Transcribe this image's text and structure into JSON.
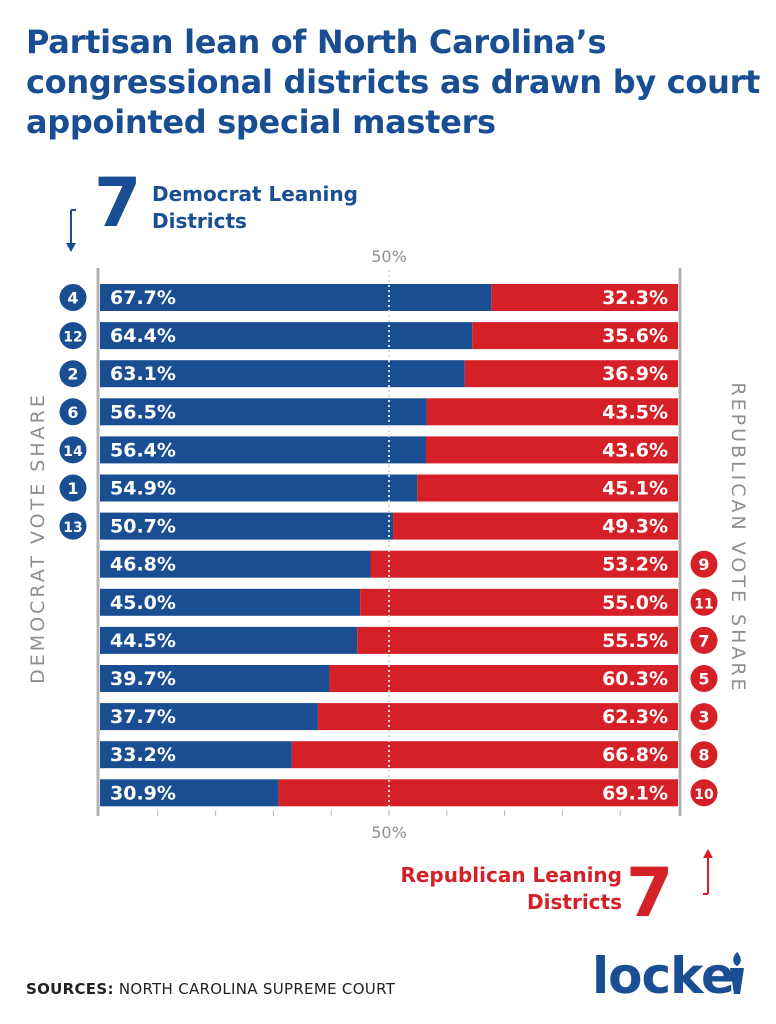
{
  "title": "Partisan lean of North Carolina’s congressional districts as drawn by court appointed special masters",
  "dem_summary": {
    "count": "7",
    "label": "Democrat Leaning Districts"
  },
  "rep_summary": {
    "count": "7",
    "label": "Republican Leaning Districts"
  },
  "left_axis_label": "DEMOCRAT VOTE SHARE",
  "right_axis_label": "REPUBLICAN VOTE SHARE",
  "sources": {
    "label": "SOURCES:",
    "text": "NORTH CAROLINA SUPREME COURT"
  },
  "logo_text": "locke",
  "colors": {
    "dem": "#1a4e92",
    "rep": "#d62027",
    "axis": "#b3b3b3"
  },
  "chart_data": {
    "type": "bar",
    "orientation": "horizontal-stacked-100",
    "midline_label": "50%",
    "categories": [
      "4",
      "12",
      "2",
      "6",
      "14",
      "1",
      "13",
      "9",
      "11",
      "7",
      "5",
      "3",
      "8",
      "10"
    ],
    "series": [
      {
        "name": "Democrat vote share",
        "values": [
          67.7,
          64.4,
          63.1,
          56.5,
          56.4,
          54.9,
          50.7,
          46.8,
          45.0,
          44.5,
          39.7,
          37.7,
          33.2,
          30.9
        ],
        "labels": [
          "67.7%",
          "64.4%",
          "63.1%",
          "56.5%",
          "56.4%",
          "54.9%",
          "50.7%",
          "46.8%",
          "45.0%",
          "44.5%",
          "39.7%",
          "37.7%",
          "33.2%",
          "30.9%"
        ]
      },
      {
        "name": "Republican vote share",
        "values": [
          32.3,
          35.6,
          36.9,
          43.5,
          43.6,
          45.1,
          49.3,
          53.2,
          55.0,
          55.5,
          60.3,
          62.3,
          66.8,
          69.1
        ],
        "labels": [
          "32.3%",
          "35.6%",
          "36.9%",
          "43.5%",
          "43.6%",
          "45.1%",
          "49.3%",
          "53.2%",
          "55.0%",
          "55.5%",
          "60.3%",
          "62.3%",
          "66.8%",
          "69.1%"
        ]
      }
    ],
    "xlim": [
      0,
      100
    ]
  }
}
